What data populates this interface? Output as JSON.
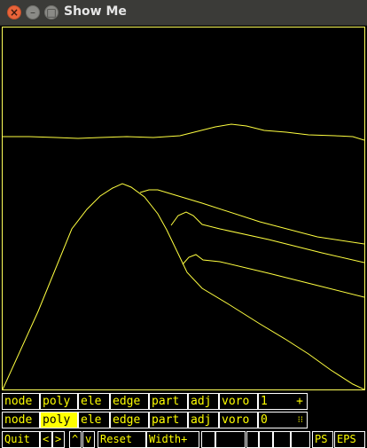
{
  "window": {
    "title": "Show Me"
  },
  "colors": {
    "drawing": "#ffff00",
    "border": "#ffffff",
    "highlight_bg": "#ffff00",
    "titlebar": "#3b3b38"
  },
  "row1": {
    "buttons": [
      "node",
      "poly",
      "ele",
      "edge",
      "part",
      "adj",
      "voro"
    ],
    "number": "1",
    "aux": "+"
  },
  "row2": {
    "buttons": [
      "node",
      "poly",
      "ele",
      "edge",
      "part",
      "adj",
      "voro"
    ],
    "highlighted": "poly",
    "number": "0",
    "aux": "⁝⁝"
  },
  "row3": {
    "buttons": [
      "Quit",
      "<",
      ">",
      "^",
      "v",
      "Reset",
      "Width+",
      "",
      "",
      "",
      "",
      "",
      "",
      "PS",
      "EPS"
    ]
  }
}
